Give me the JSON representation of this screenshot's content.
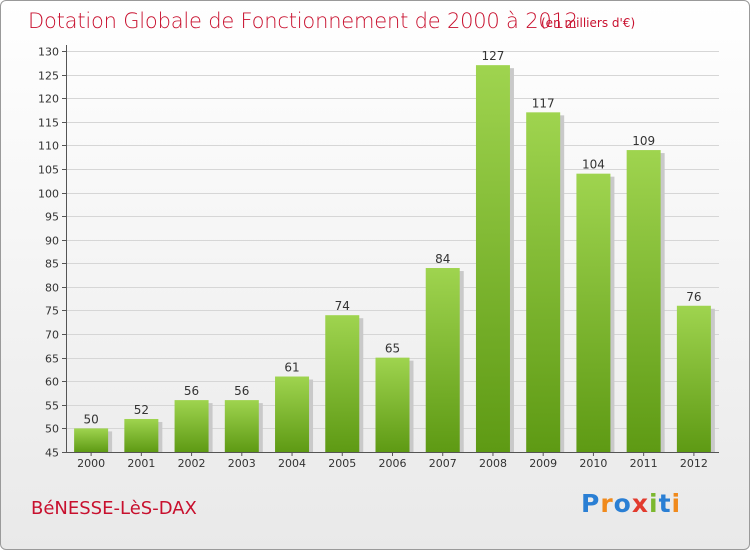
{
  "header": {
    "title": "Dotation Globale de Fonctionnement de 2000 à 2012",
    "unit": "(en milliers d'€)"
  },
  "footer": {
    "commune": "BéNESSE-LèS-DAX",
    "logo_text": "Proxiti",
    "logo_colors": [
      "#2a7fd4",
      "#f08a1c",
      "#2a7fd4",
      "#e23b2e",
      "#7cb82f",
      "#2a7fd4",
      "#f08a1c"
    ]
  },
  "colors": {
    "bar_top": "#9fd44f",
    "bar_bottom": "#5e9a14",
    "bar_shadow": "#c9c9c9",
    "grid": "#d6d6d6",
    "axis_text": "#333333",
    "title": "#c8102e"
  },
  "chart_data": {
    "type": "bar",
    "categories": [
      "2000",
      "2001",
      "2002",
      "2003",
      "2004",
      "2005",
      "2006",
      "2007",
      "2008",
      "2009",
      "2010",
      "2011",
      "2012"
    ],
    "values": [
      50,
      52,
      56,
      56,
      61,
      74,
      65,
      84,
      127,
      117,
      104,
      109,
      76
    ],
    "title": "Dotation Globale de Fonctionnement de 2000 à 2012",
    "subtitle": "(en milliers d'€)",
    "xlabel": "",
    "ylabel": "",
    "ylim": [
      45,
      130
    ],
    "yticks": [
      45,
      50,
      55,
      60,
      65,
      70,
      75,
      80,
      85,
      90,
      95,
      100,
      105,
      110,
      115,
      120,
      125,
      130
    ],
    "grid": true,
    "data_labels": true
  }
}
